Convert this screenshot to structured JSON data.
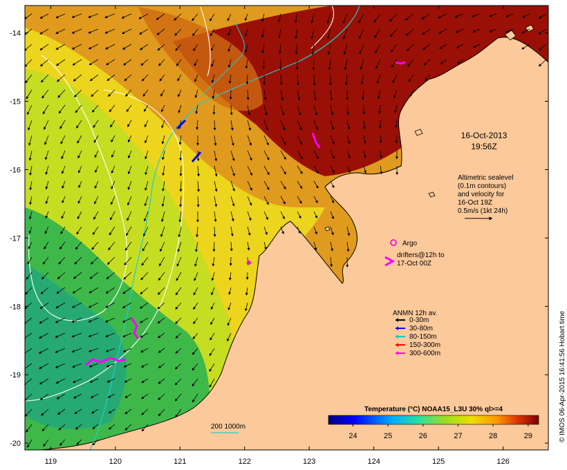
{
  "map": {
    "title_date": "16-Oct-2013",
    "title_time": "19:56Z",
    "lat_ticks": [
      "-14",
      "-15",
      "-16",
      "-17",
      "-18",
      "-19",
      "-20"
    ],
    "lon_ticks": [
      "119",
      "120",
      "121",
      "122",
      "123",
      "124",
      "125",
      "126"
    ],
    "lat_range": [
      -20.1,
      -13.6
    ],
    "lon_range": [
      118.6,
      126.7
    ],
    "altimetry_note": [
      "Altimetric sealevel",
      "(0.1m contours)",
      "and velocity for",
      "16-Oct 19Z",
      "0.5m/s (1kt 24h)"
    ],
    "argo_label": "Argo",
    "drifters_label": [
      "drifters@12h to",
      "17-Oct 00Z"
    ],
    "anmn_title": "ANMN 12h av.",
    "anmn_legend": [
      {
        "label": "0-30m",
        "color": "#000000"
      },
      {
        "label": "30-80m",
        "color": "#0000ff"
      },
      {
        "label": "80-150m",
        "color": "#00cccc"
      },
      {
        "label": "150-300m",
        "color": "#ff0000"
      },
      {
        "label": "300-600m",
        "color": "#ff00ff"
      }
    ],
    "isobath_label": "200  1000m",
    "colorbar_title": "Temperature (°C) NOAA15_L3U 30% ql>=4",
    "colorbar_ticks": [
      "24",
      "25",
      "26",
      "27",
      "28",
      "29"
    ],
    "colorbar_range": [
      23.3,
      29.3
    ],
    "credit": "© IMOS 06-Apr-2015 16:41:56 Hobart time",
    "colors": {
      "land": "#fcc99a",
      "sst_warm": "#9a1006",
      "sst_mid": "#d97a12",
      "sst_cool": "#e7d61e",
      "sst_cold": "#3fb84a",
      "argo": "#e000e0"
    }
  }
}
